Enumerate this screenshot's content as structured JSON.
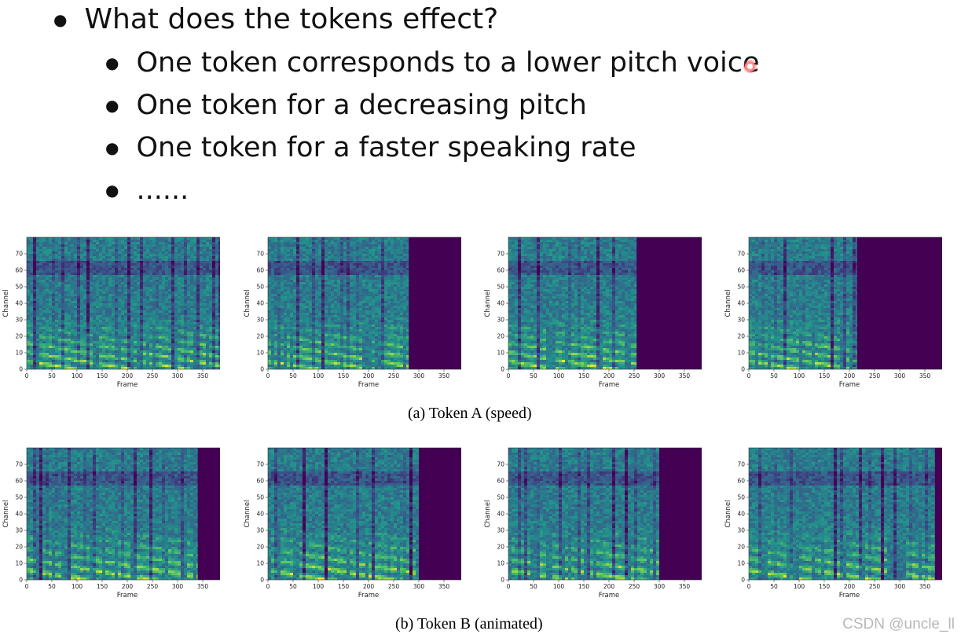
{
  "bullets": {
    "heading": "What does the tokens effect?",
    "items": [
      "One token corresponds to a lower pitch voice",
      "One token for a decreasing pitch",
      "One token for a faster speaking rate",
      "......"
    ]
  },
  "figure": {
    "caption_a": "(a) Token A (speed)",
    "caption_b": "(b) Token B (animated)"
  },
  "watermark": "CSDN @uncle_ll",
  "colors": {
    "viridis_low": "#440154",
    "viridis_mid": "#21918c",
    "viridis_high": "#fde725"
  },
  "chart_data": [
    {
      "type": "heatmap",
      "row": "a",
      "xlabel": "Frame",
      "ylabel": "Channel",
      "xlim": [
        0,
        400
      ],
      "ylim": [
        0,
        80
      ],
      "xticks": [
        0,
        50,
        100,
        150,
        200,
        250,
        300,
        350,
        400
      ],
      "yticks": [
        0,
        10,
        20,
        30,
        40,
        50,
        60,
        70
      ],
      "content_end_frame": 400
    },
    {
      "type": "heatmap",
      "row": "a",
      "xlabel": "Frame",
      "ylabel": "Channel",
      "xlim": [
        0,
        400
      ],
      "ylim": [
        0,
        80
      ],
      "xticks": [
        0,
        50,
        100,
        150,
        200,
        250,
        300,
        350,
        400
      ],
      "yticks": [
        0,
        10,
        20,
        30,
        40,
        50,
        60,
        70
      ],
      "content_end_frame": 280
    },
    {
      "type": "heatmap",
      "row": "a",
      "xlabel": "Frame",
      "ylabel": "Channel",
      "xlim": [
        0,
        400
      ],
      "ylim": [
        0,
        80
      ],
      "xticks": [
        0,
        50,
        100,
        150,
        200,
        250,
        300,
        350,
        400
      ],
      "yticks": [
        0,
        10,
        20,
        30,
        40,
        50,
        60,
        70
      ],
      "content_end_frame": 255
    },
    {
      "type": "heatmap",
      "row": "a",
      "xlabel": "Frame",
      "ylabel": "Channel",
      "xlim": [
        0,
        400
      ],
      "ylim": [
        0,
        80
      ],
      "xticks": [
        0,
        50,
        100,
        150,
        200,
        250,
        300,
        350,
        400
      ],
      "yticks": [
        0,
        10,
        20,
        30,
        40,
        50,
        60,
        70
      ],
      "content_end_frame": 215
    },
    {
      "type": "heatmap",
      "row": "b",
      "xlabel": "Frame",
      "ylabel": "Channel",
      "xlim": [
        0,
        400
      ],
      "ylim": [
        0,
        80
      ],
      "xticks": [
        0,
        50,
        100,
        150,
        200,
        250,
        300,
        350,
        400
      ],
      "yticks": [
        0,
        10,
        20,
        30,
        40,
        50,
        60,
        70
      ],
      "content_end_frame": 340
    },
    {
      "type": "heatmap",
      "row": "b",
      "xlabel": "Frame",
      "ylabel": "Channel",
      "xlim": [
        0,
        400
      ],
      "ylim": [
        0,
        80
      ],
      "xticks": [
        0,
        50,
        100,
        150,
        200,
        250,
        300,
        350,
        400
      ],
      "yticks": [
        0,
        10,
        20,
        30,
        40,
        50,
        60,
        70
      ],
      "content_end_frame": 300
    },
    {
      "type": "heatmap",
      "row": "b",
      "xlabel": "Frame",
      "ylabel": "Channel",
      "xlim": [
        0,
        400
      ],
      "ylim": [
        0,
        80
      ],
      "xticks": [
        0,
        50,
        100,
        150,
        200,
        250,
        300,
        350,
        400
      ],
      "yticks": [
        0,
        10,
        20,
        30,
        40,
        50,
        60,
        70
      ],
      "content_end_frame": 300
    },
    {
      "type": "heatmap",
      "row": "b",
      "xlabel": "Frame",
      "ylabel": "Channel",
      "xlim": [
        0,
        400
      ],
      "ylim": [
        0,
        80
      ],
      "xticks": [
        0,
        50,
        100,
        150,
        200,
        250,
        300,
        350,
        400
      ],
      "yticks": [
        0,
        10,
        20,
        30,
        40,
        50,
        60,
        70
      ],
      "content_end_frame": 370
    }
  ]
}
